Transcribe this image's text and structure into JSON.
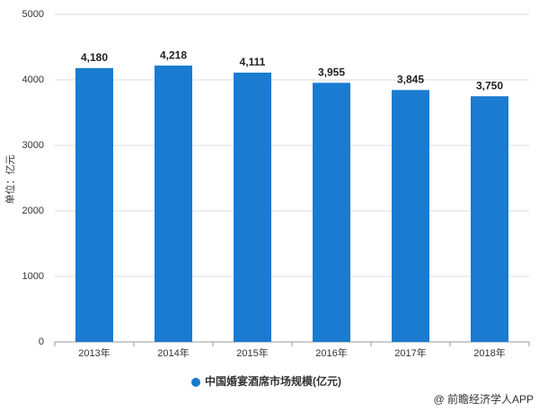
{
  "chart_data": {
    "type": "bar",
    "y_axis_label": "单位：亿元",
    "categories": [
      "2013年",
      "2014年",
      "2015年",
      "2016年",
      "2017年",
      "2018年"
    ],
    "series": [
      {
        "name": "中国婚宴酒席市场规模(亿元)",
        "color": "#1a7bd0",
        "values": [
          4180,
          4218,
          4111,
          3955,
          3845,
          3750
        ],
        "value_labels": [
          "4,180",
          "4,218",
          "4,111",
          "3,955",
          "3,845",
          "3,750"
        ]
      }
    ],
    "ylim": [
      0,
      5000
    ],
    "yticks": [
      0,
      1000,
      2000,
      3000,
      4000,
      5000
    ],
    "grid": true,
    "legend": "bottom",
    "source": "@ 前瞻经济学人APP"
  }
}
